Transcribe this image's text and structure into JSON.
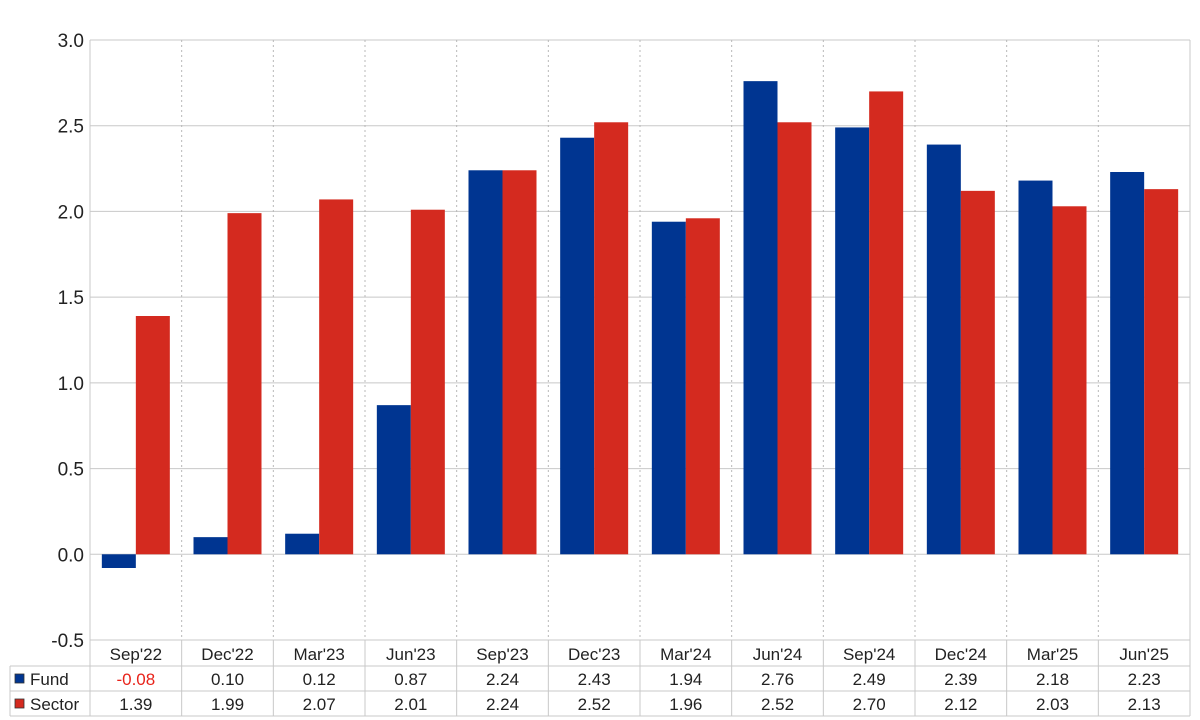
{
  "chart_data": {
    "type": "bar",
    "categories": [
      "Sep'22",
      "Dec'22",
      "Mar'23",
      "Jun'23",
      "Sep'23",
      "Dec'23",
      "Mar'24",
      "Jun'24",
      "Sep'24",
      "Dec'24",
      "Mar'25",
      "Jun'25"
    ],
    "series": [
      {
        "name": "Fund",
        "color": "#003591",
        "values": [
          -0.08,
          0.1,
          0.12,
          0.87,
          2.24,
          2.43,
          1.94,
          2.76,
          2.49,
          2.39,
          2.18,
          2.23
        ],
        "labels": [
          "-0.08",
          "0.10",
          "0.12",
          "0.87",
          "2.24",
          "2.43",
          "1.94",
          "2.76",
          "2.49",
          "2.39",
          "2.18",
          "2.23"
        ]
      },
      {
        "name": "Sector",
        "color": "#d42a1f",
        "values": [
          1.39,
          1.99,
          2.07,
          2.01,
          2.24,
          2.52,
          1.96,
          2.52,
          2.7,
          2.12,
          2.03,
          2.13
        ],
        "labels": [
          "1.39",
          "1.99",
          "2.07",
          "2.01",
          "2.24",
          "2.52",
          "1.96",
          "2.52",
          "2.70",
          "2.12",
          "2.03",
          "2.13"
        ]
      }
    ],
    "ylim": [
      -0.5,
      3.0
    ],
    "yticks": [
      "-0.5",
      "0.0",
      "0.5",
      "1.0",
      "1.5",
      "2.0",
      "2.5",
      "3.0"
    ],
    "grid": true,
    "legend": "data-table-bottom",
    "negative_label_color": "#e8231a"
  }
}
